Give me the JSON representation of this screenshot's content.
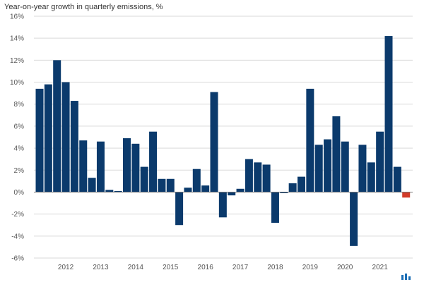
{
  "chart_data": {
    "type": "bar",
    "subtitle": "Year-on-year growth in quarterly emissions, %",
    "ylim": [
      -6,
      16
    ],
    "y_ticks": [
      "16%",
      "14%",
      "12%",
      "10%",
      "8%",
      "6%",
      "4%",
      "2%",
      "0%",
      "-2%",
      "-4%",
      "-6%"
    ],
    "y_tick_values": [
      16,
      14,
      12,
      10,
      8,
      6,
      4,
      2,
      0,
      -2,
      -4,
      -6
    ],
    "x_year_labels": [
      "2012",
      "2013",
      "2014",
      "2015",
      "2016",
      "2017",
      "2018",
      "2019",
      "2020",
      "2021"
    ],
    "grid": true,
    "colors": {
      "primary": "#0b3a6c",
      "highlight": "#d23c2a",
      "grid": "#d9d9d9",
      "zero_line": "#777777"
    },
    "highlight_last": true,
    "values": [
      9.4,
      9.8,
      12.0,
      10.0,
      8.3,
      4.7,
      1.3,
      4.6,
      0.2,
      0.1,
      4.9,
      4.4,
      2.3,
      5.5,
      1.2,
      1.2,
      -3.0,
      0.4,
      2.1,
      0.6,
      9.1,
      -2.3,
      -0.3,
      0.3,
      3.0,
      2.7,
      2.5,
      -2.8,
      -0.1,
      0.8,
      1.4,
      9.4,
      4.3,
      4.8,
      6.9,
      4.6,
      -4.9,
      4.3,
      2.7,
      5.5,
      14.2,
      2.3,
      -0.5
    ]
  },
  "logo": {
    "name": "carbon-brief-logo-icon",
    "color": "#1a6db5"
  }
}
